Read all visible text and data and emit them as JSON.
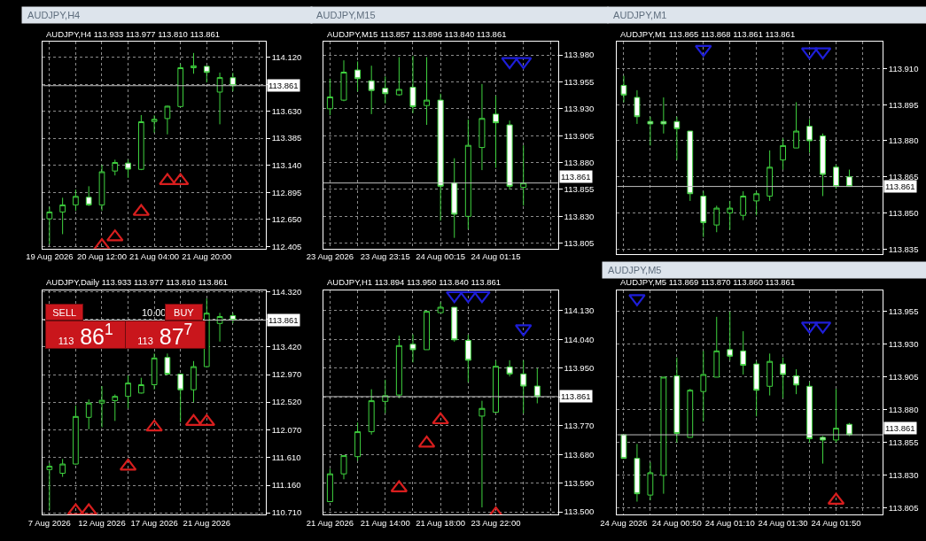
{
  "chart_data": [
    {
      "type": "candlestick",
      "title": "AUDJPY,H4",
      "subtitle": "AUDJPY,H4 113.933 113.977 113.810 113.861",
      "categories": [
        "19 Aug 2026",
        null,
        null,
        null,
        "20 Aug 12:00",
        null,
        null,
        null,
        "21 Aug 04:00",
        null,
        null,
        null,
        "21 Aug 20:00",
        null,
        null,
        null,
        null
      ],
      "series": [
        {
          "color": "#3fd33f",
          "ohlc": [
            [
              112.655,
              112.764,
              112.425,
              112.717
            ],
            [
              112.717,
              112.846,
              112.516,
              112.781
            ],
            [
              112.781,
              112.92,
              112.727,
              112.858
            ],
            [
              112.85,
              112.95,
              112.771,
              112.781
            ],
            [
              112.781,
              113.143,
              112.729,
              113.081
            ],
            [
              113.088,
              113.19,
              113.048,
              113.165
            ],
            [
              113.16,
              113.192,
              113.026,
              113.105
            ],
            [
              113.103,
              113.595,
              113.096,
              113.534
            ],
            [
              113.536,
              113.593,
              113.435,
              113.556
            ],
            [
              113.563,
              113.68,
              113.42,
              113.675
            ],
            [
              113.672,
              114.058,
              113.667,
              114.023
            ],
            [
              114.023,
              114.157,
              113.969,
              114.041
            ],
            [
              114.036,
              114.04,
              113.89,
              113.981
            ],
            [
              113.803,
              113.979,
              113.511,
              113.934
            ],
            [
              113.933,
              113.977,
              113.81,
              113.861
            ],
            null,
            null
          ]
        },
        {
          "type": "scatter",
          "marker": "triangle",
          "color": "#d81e1e",
          "values": [
            null,
            null,
            null,
            null,
            112.41,
            112.49,
            null,
            112.72,
            null,
            113.0,
            113.0,
            null,
            null,
            null,
            null,
            null,
            null
          ]
        }
      ],
      "ylim": [
        112.385,
        114.256
      ],
      "yticks": [
        {
          "value": 114.12,
          "label": "114.120"
        },
        {
          "value": 113.875,
          "label": null
        },
        {
          "value": 113.63,
          "label": "113.630"
        },
        113.385,
        {
          "value": 113.14,
          "label": "113.140"
        },
        112.895,
        {
          "value": 112.65,
          "label": "112.650"
        },
        112.405
      ],
      "ref_lines": [
        {
          "axis": "y",
          "value": 113.861,
          "label": "113.861",
          "color": "#c0c0c0"
        }
      ],
      "grid": true
    },
    {
      "type": "candlestick",
      "title": "AUDJPY,M15",
      "subtitle": "AUDJPY,M15 113.857 113.896 113.840 113.861",
      "categories": [
        "23 Aug 2026",
        null,
        null,
        null,
        "23 Aug 23:15",
        null,
        null,
        null,
        "24 Aug 00:15",
        null,
        null,
        null,
        "24 Aug 01:15",
        null,
        null,
        null,
        null
      ],
      "series": [
        {
          "color": "#3fd33f",
          "ohlc": [
            [
              113.93,
              113.958,
              113.924,
              113.941
            ],
            [
              113.938,
              113.975,
              113.937,
              113.964
            ],
            [
              113.966,
              113.974,
              113.946,
              113.958
            ],
            [
              113.956,
              113.97,
              113.925,
              113.947
            ],
            [
              113.949,
              113.96,
              113.935,
              113.944
            ],
            [
              113.943,
              113.978,
              113.942,
              113.948
            ],
            [
              113.95,
              113.979,
              113.926,
              113.932
            ],
            [
              113.933,
              113.978,
              113.915,
              113.938
            ],
            [
              113.938,
              113.944,
              113.826,
              113.858
            ],
            [
              113.861,
              113.884,
              113.81,
              113.832
            ],
            [
              113.83,
              113.92,
              113.818,
              113.896
            ],
            [
              113.894,
              113.953,
              113.873,
              113.921
            ],
            [
              113.925,
              113.942,
              113.875,
              113.917
            ],
            [
              113.915,
              113.919,
              113.855,
              113.858
            ],
            [
              113.857,
              113.896,
              113.84,
              113.861
            ],
            null,
            null
          ]
        },
        {
          "type": "scatter",
          "marker": "triangle",
          "color": "#1e1ed8",
          "values": [
            null,
            null,
            null,
            null,
            null,
            null,
            null,
            null,
            null,
            null,
            null,
            null,
            null,
            113.974,
            113.974,
            null,
            null
          ]
        }
      ],
      "ylim": [
        113.8,
        113.992
      ],
      "yticks": [
        {
          "value": 113.98,
          "label": "113.980"
        },
        113.955,
        {
          "value": 113.93,
          "label": "113.930"
        },
        113.905,
        {
          "value": 113.88,
          "label": "113.880"
        },
        113.855,
        {
          "value": 113.83,
          "label": "113.830"
        },
        113.805
      ],
      "ref_lines": [
        {
          "axis": "y",
          "value": 113.861,
          "label": "113.861",
          "color": "#c0c0c0"
        }
      ],
      "grid": true
    },
    {
      "type": "candlestick",
      "title": "AUDJPY,M1",
      "subtitle": "AUDJPY,M1 113.865 113.868 113.861 113.861",
      "categories": [
        null,
        null,
        null,
        null,
        null,
        null,
        null,
        null,
        null,
        null,
        null,
        null,
        null,
        null,
        null,
        null,
        null,
        null,
        null,
        null
      ],
      "series": [
        {
          "color": "#3fd33f",
          "ohlc": [
            [
              113.903,
              113.907,
              113.896,
              113.899
            ],
            [
              113.898,
              113.901,
              113.887,
              113.89
            ],
            [
              113.888,
              113.89,
              113.878,
              113.887
            ],
            [
              113.888,
              113.898,
              113.883,
              113.887
            ],
            [
              113.888,
              113.89,
              113.872,
              113.885
            ],
            [
              113.884,
              113.884,
              113.855,
              113.858
            ],
            [
              113.857,
              113.859,
              113.84,
              113.846
            ],
            [
              113.845,
              113.853,
              113.842,
              113.852
            ],
            [
              113.85,
              113.855,
              113.843,
              113.852
            ],
            [
              113.849,
              113.859,
              113.847,
              113.857
            ],
            [
              113.855,
              113.859,
              113.849,
              113.858
            ],
            [
              113.857,
              113.876,
              113.855,
              113.869
            ],
            [
              113.872,
              113.881,
              113.868,
              113.878
            ],
            [
              113.877,
              113.896,
              113.877,
              113.884
            ],
            [
              113.886,
              113.889,
              113.875,
              113.88
            ],
            [
              113.882,
              113.883,
              113.857,
              113.866
            ],
            [
              113.869,
              113.87,
              113.86,
              113.861
            ],
            [
              113.865,
              113.868,
              113.861,
              113.861
            ],
            null,
            null
          ]
        },
        {
          "type": "scatter",
          "marker": "triangle",
          "color": "#1e1ed8",
          "values": [
            null,
            null,
            null,
            null,
            null,
            null,
            113.918,
            null,
            null,
            null,
            null,
            null,
            null,
            null,
            113.917,
            113.917,
            null,
            null,
            null,
            null
          ]
        }
      ],
      "ylim": [
        113.833,
        113.921
      ],
      "yticks": [
        {
          "value": 113.91,
          "label": "113.910"
        },
        113.895,
        {
          "value": 113.88,
          "label": "113.880"
        },
        113.865,
        {
          "value": 113.85,
          "label": "113.850"
        },
        113.835
      ],
      "ref_lines": [
        {
          "axis": "y",
          "value": 113.861,
          "label": "113.861",
          "color": "#c0c0c0"
        }
      ],
      "grid": true,
      "tick_labels": "y"
    },
    {
      "type": "candlestick",
      "subtitle": "AUDJPY,Daily 113.933 113.977 113.810 113.861",
      "categories": [
        "7 Aug 2026",
        null,
        null,
        null,
        "12 Aug 2026",
        null,
        null,
        null,
        "17 Aug 2026",
        null,
        null,
        null,
        "21 Aug 2026",
        null,
        null,
        null,
        null
      ],
      "series": [
        {
          "color": "#3fd33f",
          "ohlc": [
            [
              111.416,
              111.525,
              110.756,
              111.47
            ],
            [
              111.356,
              111.589,
              111.297,
              111.507
            ],
            [
              111.507,
              112.463,
              111.5,
              112.285
            ],
            [
              112.271,
              112.563,
              112.076,
              112.504
            ],
            [
              112.504,
              112.781,
              112.108,
              112.549
            ],
            [
              112.545,
              112.645,
              112.212,
              112.613
            ],
            [
              112.613,
              112.954,
              112.417,
              112.831
            ],
            [
              112.668,
              112.918,
              112.66,
              112.804
            ],
            [
              112.804,
              113.314,
              112.727,
              113.241
            ],
            [
              113.25,
              113.314,
              112.963,
              112.977
            ],
            [
              112.977,
              112.985,
              112.19,
              112.722
            ],
            [
              112.722,
              113.191,
              112.517,
              113.1
            ],
            [
              113.1,
              114.215,
              113.09,
              113.974
            ],
            [
              113.806,
              113.979,
              113.51,
              113.919
            ],
            [
              113.933,
              113.977,
              113.81,
              113.861
            ],
            null,
            null
          ]
        },
        {
          "type": "scatter",
          "marker": "triangle",
          "color": "#d81e1e",
          "values": [
            null,
            null,
            110.74,
            110.74,
            null,
            null,
            111.47,
            null,
            112.11,
            null,
            null,
            112.2,
            112.2,
            null,
            null,
            null,
            null
          ]
        }
      ],
      "ylim": [
        110.678,
        114.343
      ],
      "yticks": [
        {
          "value": 114.32,
          "label": "114.320"
        },
        {
          "value": 113.87,
          "label": null
        },
        {
          "value": 113.42,
          "label": "113.420"
        },
        {
          "value": 112.97,
          "label": "112.970"
        },
        {
          "value": 112.52,
          "label": "112.520"
        },
        {
          "value": 112.07,
          "label": "112.070"
        },
        {
          "value": 111.61,
          "label": "111.610"
        },
        {
          "value": 111.16,
          "label": "111.160"
        },
        {
          "value": 110.71,
          "label": "110.710"
        }
      ],
      "ref_lines": [
        {
          "axis": "y",
          "value": 113.861,
          "label": "113.861",
          "color": "#c0c0c0"
        }
      ],
      "grid": true,
      "annotations": [
        "SELL",
        "10.00",
        "BUY",
        "113 86$^{1}$",
        "113 87$^{7}$"
      ]
    },
    {
      "type": "candlestick",
      "subtitle": "AUDJPY,H1 113.894 113.950 113.840 113.861",
      "categories": [
        "21 Aug 2026",
        null,
        null,
        null,
        "21 Aug 14:00",
        null,
        null,
        null,
        "21 Aug 18:00",
        null,
        null,
        null,
        "23 Aug 22:00",
        null,
        null,
        null,
        null
      ],
      "series": [
        {
          "color": "#3fd33f",
          "ohlc": [
            [
              113.532,
              113.635,
              113.532,
              113.619
            ],
            [
              113.619,
              113.676,
              113.602,
              113.676
            ],
            [
              113.673,
              113.78,
              113.66,
              113.751
            ],
            [
              113.751,
              113.884,
              113.742,
              113.848
            ],
            [
              113.846,
              113.914,
              113.809,
              113.864
            ],
            [
              113.866,
              114.052,
              113.856,
              114.021
            ],
            [
              114.025,
              114.056,
              113.968,
              114.008
            ],
            [
              114.008,
              114.13,
              114.008,
              114.128
            ],
            [
              114.124,
              114.157,
              114.124,
              114.141
            ],
            [
              114.141,
              114.141,
              114.033,
              114.039
            ],
            [
              114.037,
              114.055,
              113.906,
              113.975
            ],
            [
              113.8,
              113.848,
              113.514,
              113.824
            ],
            [
              113.812,
              113.974,
              113.81,
              113.956
            ],
            [
              113.954,
              113.975,
              113.924,
              113.932
            ],
            [
              113.932,
              113.975,
              113.808,
              113.894
            ],
            [
              113.894,
              113.95,
              113.84,
              113.861
            ],
            null
          ]
        },
        {
          "type": "scatter",
          "marker": "triangle",
          "color": "#d81e1e",
          "values": [
            null,
            null,
            null,
            null,
            null,
            113.575,
            null,
            113.715,
            113.788,
            null,
            null,
            null,
            113.493,
            null,
            null,
            null,
            null
          ]
        },
        {
          "type": "scatter",
          "marker": "triangle",
          "color": "#1e1ed8",
          "values": [
            null,
            null,
            null,
            null,
            null,
            null,
            null,
            null,
            null,
            114.178,
            114.178,
            114.178,
            null,
            null,
            114.074,
            null,
            null
          ]
        }
      ],
      "ylim": [
        113.491,
        114.193
      ],
      "yticks": [
        {
          "value": 114.13,
          "label": "114.130"
        },
        {
          "value": 114.04,
          "label": "114.040"
        },
        {
          "value": 113.95,
          "label": "113.950"
        },
        {
          "value": 113.86,
          "label": null
        },
        {
          "value": 113.77,
          "label": "113.770"
        },
        {
          "value": 113.68,
          "label": "113.680"
        },
        {
          "value": 113.59,
          "label": "113.590"
        },
        {
          "value": 113.5,
          "label": "113.500"
        }
      ],
      "ref_lines": [
        {
          "axis": "y",
          "value": 113.861,
          "label": "113.861",
          "color": "#c0c0c0"
        }
      ],
      "grid": true
    },
    {
      "type": "candlestick",
      "title": "AUDJPY,M5",
      "subtitle": "AUDJPY,M5 113.869 113.870 113.860 113.861",
      "categories": [
        "24 Aug 2026",
        null,
        null,
        null,
        "24 Aug 00:50",
        null,
        null,
        null,
        "24 Aug 01:10",
        null,
        null,
        null,
        "24 Aug 01:30",
        null,
        null,
        null,
        "24 Aug 01:50",
        null,
        null,
        null
      ],
      "series": [
        {
          "color": "#3fd33f",
          "ohlc": [
            [
              113.861,
              113.861,
              113.843,
              113.843
            ],
            [
              113.843,
              113.854,
              113.81,
              113.816
            ],
            [
              113.815,
              113.84,
              113.811,
              113.832
            ],
            [
              113.83,
              113.905,
              113.816,
              113.905
            ],
            [
              113.906,
              113.92,
              113.855,
              113.862
            ],
            [
              113.859,
              113.896,
              113.859,
              113.895
            ],
            [
              113.894,
              113.925,
              113.871,
              113.907
            ],
            [
              113.905,
              113.951,
              113.905,
              113.925
            ],
            [
              113.926,
              113.955,
              113.918,
              113.921
            ],
            [
              113.925,
              113.94,
              113.907,
              113.914
            ],
            [
              113.915,
              113.917,
              113.875,
              113.895
            ],
            [
              113.898,
              113.923,
              113.891,
              113.917
            ],
            [
              113.915,
              113.92,
              113.889,
              113.907
            ],
            [
              113.906,
              113.911,
              113.892,
              113.899
            ],
            [
              113.898,
              113.901,
              113.855,
              113.858
            ],
            [
              113.859,
              113.86,
              113.839,
              113.857
            ],
            [
              113.857,
              113.896,
              113.855,
              113.866
            ],
            [
              113.869,
              113.87,
              113.86,
              113.861
            ],
            null,
            null
          ]
        },
        {
          "type": "scatter",
          "marker": "triangle",
          "color": "#d81e1e",
          "values": [
            null,
            null,
            null,
            null,
            null,
            null,
            null,
            null,
            null,
            null,
            null,
            null,
            null,
            null,
            null,
            null,
            113.811,
            null,
            null,
            null
          ]
        },
        {
          "type": "scatter",
          "marker": "triangle",
          "color": "#1e1ed8",
          "values": [
            null,
            113.965,
            null,
            null,
            null,
            null,
            null,
            null,
            null,
            null,
            null,
            null,
            null,
            null,
            113.944,
            113.944,
            null,
            null,
            null,
            null
          ]
        }
      ],
      "ylim": [
        113.8,
        113.971
      ],
      "yticks": [
        113.955,
        {
          "value": 113.93,
          "label": "113.930"
        },
        113.905,
        {
          "value": 113.88,
          "label": "113.880"
        },
        113.855,
        {
          "value": 113.83,
          "label": "113.830"
        },
        113.805
      ],
      "ref_lines": [
        {
          "axis": "y",
          "value": 113.861,
          "label": "113.861",
          "color": "#c0c0c0"
        }
      ],
      "grid": true
    }
  ]
}
